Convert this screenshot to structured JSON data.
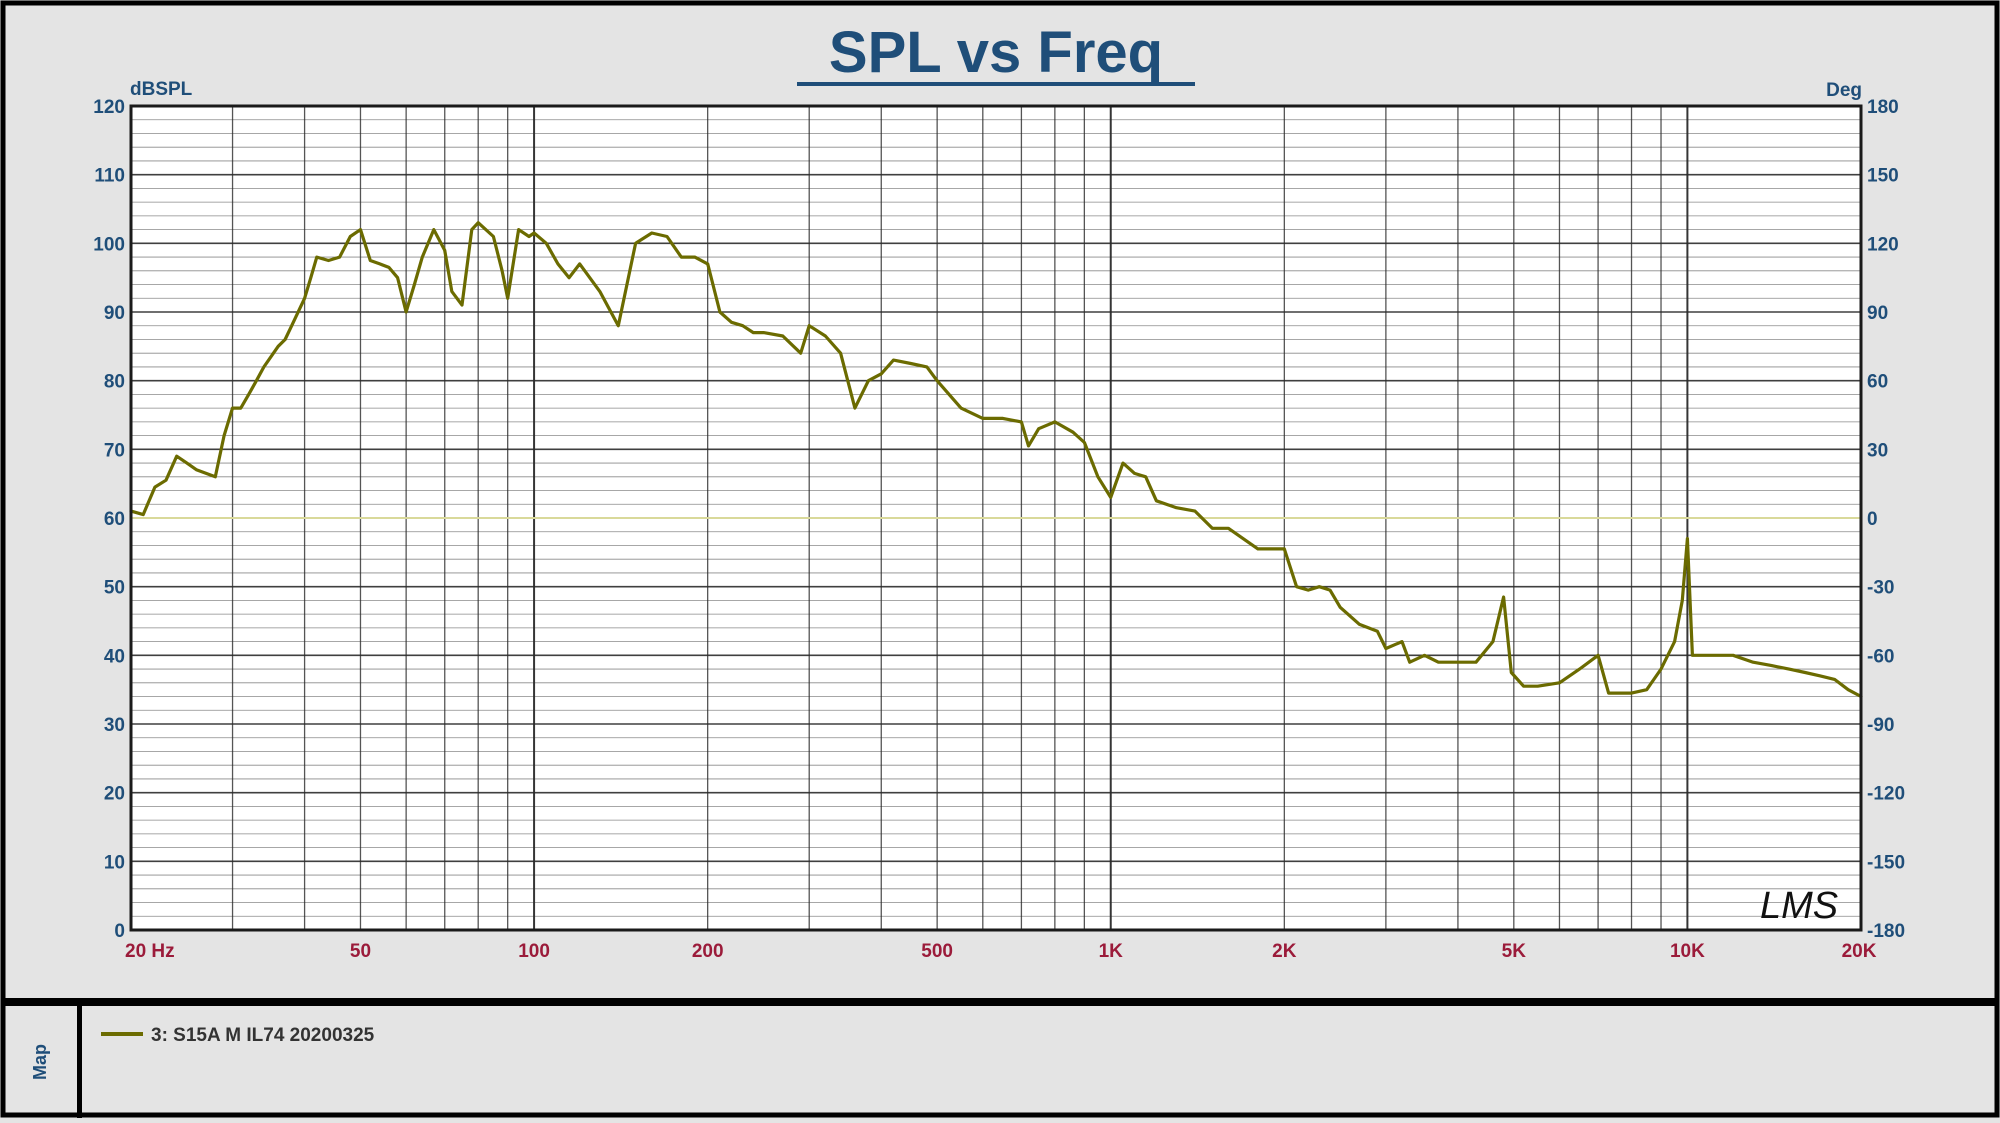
{
  "colors": {
    "background": "#e4e4e4",
    "plot_background": "#ffffff",
    "grid": "#2a2a2a",
    "curve": "#6b6b00",
    "zero_line": "#d9d99a",
    "axis_text_y": "#1f4e79",
    "axis_text_x": "#9b1b3a"
  },
  "chart_data": {
    "type": "line",
    "title": "SPL vs Freq",
    "ylabel_left": "dBSPL",
    "ylabel_right": "Deg",
    "xscale": "log",
    "xlim": [
      20,
      20000
    ],
    "ylim": [
      0,
      120
    ],
    "ylim_right": [
      -180,
      180
    ],
    "grid": true,
    "x_ticks": [
      {
        "value": 20,
        "label": "20  Hz"
      },
      {
        "value": 50,
        "label": "50"
      },
      {
        "value": 100,
        "label": "100"
      },
      {
        "value": 200,
        "label": "200"
      },
      {
        "value": 500,
        "label": "500"
      },
      {
        "value": 1000,
        "label": "1K"
      },
      {
        "value": 2000,
        "label": "2K"
      },
      {
        "value": 5000,
        "label": "5K"
      },
      {
        "value": 10000,
        "label": "10K"
      },
      {
        "value": 20000,
        "label": "20K"
      }
    ],
    "y_ticks_left": [
      "0",
      "10",
      "20",
      "30",
      "40",
      "50",
      "60",
      "70",
      "80",
      "90",
      "100",
      "110",
      "120"
    ],
    "y_ticks_right": [
      "-180",
      "-150",
      "-120",
      "-90",
      "-60",
      "-30",
      "0",
      "30",
      "60",
      "90",
      "120",
      "150",
      "180"
    ],
    "watermark": "LMS",
    "series": [
      {
        "name": "3: S15A   M    IL74   20200325",
        "x": [
          20,
          21,
          22,
          23,
          24,
          25,
          26,
          28,
          29,
          30,
          31,
          32,
          33,
          34,
          36,
          37,
          38,
          40,
          41,
          42,
          44,
          46,
          48,
          50,
          52,
          54,
          56,
          58,
          60,
          62,
          64,
          67,
          70,
          72,
          75,
          78,
          80,
          85,
          88,
          90,
          94,
          98,
          100,
          105,
          110,
          115,
          120,
          130,
          140,
          150,
          160,
          170,
          180,
          190,
          200,
          210,
          220,
          230,
          240,
          250,
          270,
          290,
          300,
          320,
          340,
          360,
          380,
          400,
          420,
          450,
          480,
          500,
          550,
          600,
          650,
          700,
          720,
          750,
          800,
          860,
          900,
          950,
          1000,
          1050,
          1100,
          1150,
          1200,
          1300,
          1400,
          1500,
          1600,
          1800,
          2000,
          2100,
          2200,
          2300,
          2400,
          2500,
          2700,
          2900,
          3000,
          3200,
          3300,
          3500,
          3700,
          4000,
          4300,
          4600,
          4800,
          4950,
          5200,
          5500,
          6000,
          6500,
          7000,
          7300,
          7500,
          8000,
          8500,
          9000,
          9500,
          9800,
          10000,
          10200,
          11000,
          12000,
          13000,
          14000,
          15000,
          16000,
          17000,
          18000,
          19000,
          20000
        ],
        "y": [
          61,
          60.5,
          64.5,
          65.5,
          69,
          68,
          67,
          66,
          72,
          76,
          76,
          78,
          80,
          82,
          85,
          86,
          88,
          92,
          95,
          98,
          97.5,
          98,
          101,
          102,
          97.5,
          97,
          96.5,
          95,
          90,
          94,
          98,
          102,
          99,
          93,
          91,
          102,
          103,
          101,
          96,
          92,
          102,
          101,
          101.5,
          100,
          97,
          95,
          97,
          93,
          88,
          100,
          101.5,
          101,
          98,
          98,
          97,
          90,
          88.5,
          88,
          87,
          87,
          86.5,
          84,
          88,
          86.5,
          84,
          76,
          80,
          81,
          83,
          82.5,
          82,
          80,
          76,
          74.5,
          74.5,
          74,
          70.5,
          73,
          74,
          72.5,
          71,
          66,
          63,
          68,
          66.5,
          66,
          62.5,
          61.5,
          61,
          58.5,
          58.5,
          55.5,
          55.5,
          50,
          49.5,
          50,
          49.5,
          47,
          44.5,
          43.5,
          41,
          42,
          39,
          40,
          39,
          39,
          39,
          42,
          48.5,
          37.5,
          35.5,
          35.5,
          36,
          38,
          40,
          34.5,
          34.5,
          34.5,
          35,
          38,
          42,
          48,
          57,
          40,
          40,
          40,
          39,
          38.5,
          38,
          37.5,
          37,
          36.5,
          35,
          34
        ]
      }
    ]
  },
  "legend": {
    "entries": [
      {
        "label": "3: S15A   M    IL74   20200325",
        "color": "#6b6b00"
      }
    ],
    "side_label": "Map"
  }
}
